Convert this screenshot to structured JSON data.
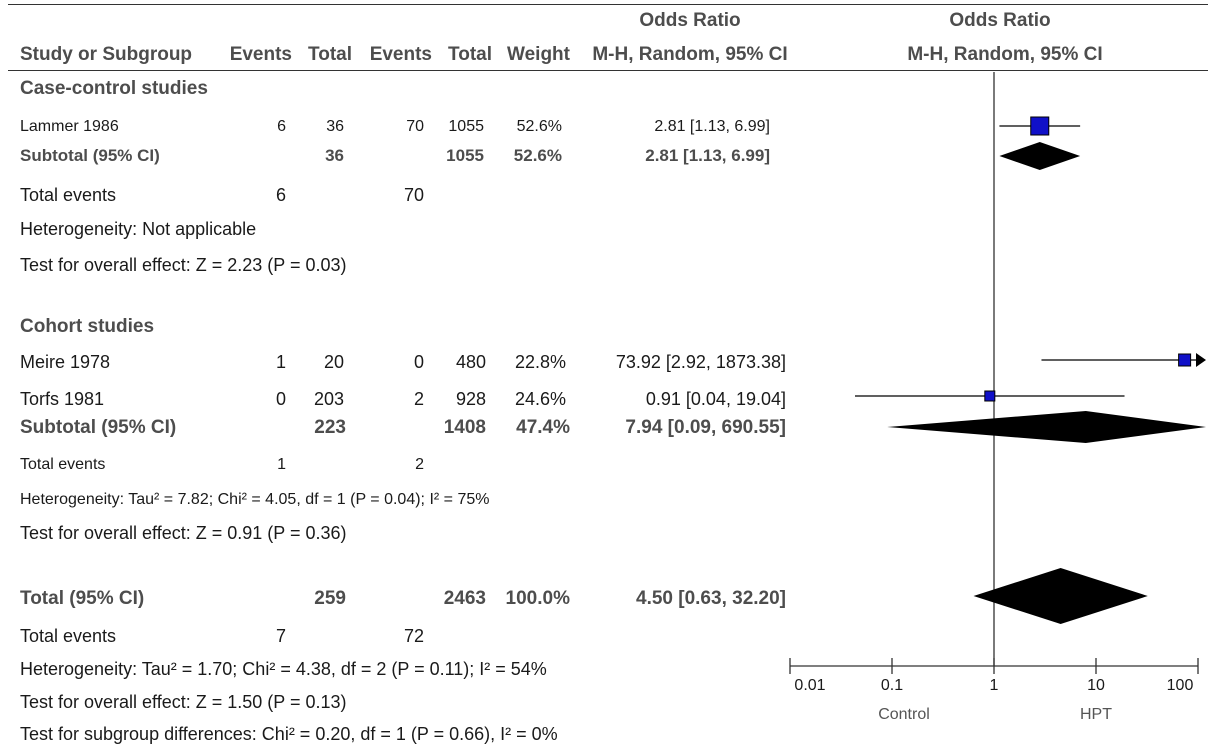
{
  "header": {
    "or_title_left": "Odds Ratio",
    "or_title_right": "Odds Ratio",
    "col_study": "Study or Subgroup",
    "col_events1": "Events",
    "col_total1": "Total",
    "col_events2": "Events",
    "col_total2": "Total",
    "col_weight": "Weight",
    "col_ci": "M-H, Random, 95% CI",
    "col_ci_right": "M-H, Random, 95% CI"
  },
  "groups": [
    {
      "name": "Case-control studies",
      "studies": [
        {
          "name": "Lammer 1986",
          "e1": "6",
          "t1": "36",
          "e2": "70",
          "t2": "1055",
          "weight": "52.6%",
          "ci": "2.81 [1.13, 6.99]"
        }
      ],
      "subtotal": {
        "label": "Subtotal (95% CI)",
        "t1": "36",
        "t2": "1055",
        "weight": "52.6%",
        "ci": "2.81 [1.13, 6.99]"
      },
      "total_events": {
        "label": "Total events",
        "e1": "6",
        "e2": "70"
      },
      "heterogeneity": "Heterogeneity: Not applicable",
      "overall": "Test for overall effect: Z = 2.23 (P = 0.03)"
    },
    {
      "name": "Cohort studies",
      "studies": [
        {
          "name": "Meire 1978",
          "e1": "1",
          "t1": "20",
          "e2": "0",
          "t2": "480",
          "weight": "22.8%",
          "ci": "73.92 [2.92, 1873.38]"
        },
        {
          "name": "Torfs 1981",
          "e1": "0",
          "t1": "203",
          "e2": "2",
          "t2": "928",
          "weight": "24.6%",
          "ci": "0.91 [0.04, 19.04]"
        }
      ],
      "subtotal": {
        "label": "Subtotal (95% CI)",
        "t1": "223",
        "t2": "1408",
        "weight": "47.4%",
        "ci": "7.94 [0.09, 690.55]"
      },
      "total_events": {
        "label": "Total events",
        "e1": "1",
        "e2": "2"
      },
      "heterogeneity": "Heterogeneity: Tau² = 7.82; Chi² = 4.05, df = 1 (P = 0.04); I² = 75%",
      "overall": "Test for overall effect: Z = 0.91 (P = 0.36)"
    }
  ],
  "total": {
    "label": "Total (95% CI)",
    "t1": "259",
    "t2": "2463",
    "weight": "100.0%",
    "ci": "4.50 [0.63, 32.20]"
  },
  "total_events": {
    "label": "Total events",
    "e1": "7",
    "e2": "72"
  },
  "heterogeneity": "Heterogeneity: Tau² = 1.70; Chi² = 4.38, df = 2 (P = 0.11); I² = 54%",
  "overall": "Test for overall effect: Z = 1.50 (P = 0.13)",
  "subgroup_diff": "Test for subgroup differences: Chi² = 0.20, df = 1 (P = 0.66), I² = 0%",
  "chart_data": {
    "type": "forest",
    "scale": "log",
    "xlim": [
      0.01,
      100
    ],
    "ticks": [
      0.01,
      0.1,
      1,
      10,
      100
    ],
    "tick_labels": [
      "0.01",
      "0.1",
      "1",
      "10",
      "100"
    ],
    "left_label": "Control",
    "right_label": "HPT",
    "null_line": 1,
    "studies": [
      {
        "name": "Lammer 1986",
        "or": 2.81,
        "lo": 1.13,
        "hi": 6.99,
        "weight": 52.6
      },
      {
        "name": "Meire 1978",
        "or": 73.92,
        "lo": 2.92,
        "hi": 1873.38,
        "weight": 22.8
      },
      {
        "name": "Torfs 1981",
        "or": 0.91,
        "lo": 0.04,
        "hi": 19.04,
        "weight": 24.6
      }
    ],
    "summaries": [
      {
        "name": "Subtotal Case-control",
        "or": 2.81,
        "lo": 1.13,
        "hi": 6.99
      },
      {
        "name": "Subtotal Cohort",
        "or": 7.94,
        "lo": 0.09,
        "hi": 690.55
      },
      {
        "name": "Total",
        "or": 4.5,
        "lo": 0.63,
        "hi": 32.2
      }
    ],
    "colors": {
      "square": "#1010c8",
      "diamond": "#000000",
      "line": "#000000"
    }
  }
}
